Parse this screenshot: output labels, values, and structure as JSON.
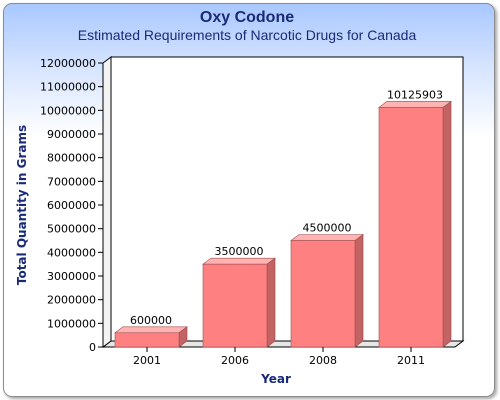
{
  "chart_data": {
    "type": "bar",
    "title": "Oxy Codone",
    "subtitle": "Estimated Requirements of Narcotic Drugs for Canada",
    "xlabel": "Year",
    "ylabel": "Total Quantity in Grams",
    "categories": [
      "2001",
      "2006",
      "2008",
      "2011"
    ],
    "values": [
      600000,
      3500000,
      4500000,
      10125903
    ],
    "data_labels": [
      "600000",
      "3500000",
      "4500000",
      "10125903"
    ],
    "ylim": [
      0,
      12000000
    ],
    "yticks": [
      "0",
      "1000000",
      "2000000",
      "3000000",
      "4000000",
      "5000000",
      "6000000",
      "7000000",
      "8000000",
      "9000000",
      "10000000",
      "11000000",
      "12000000"
    ],
    "grid": false,
    "legend": "none",
    "style": "3d",
    "bar_color": "#ff8080",
    "text_color": "#1a2a78"
  }
}
